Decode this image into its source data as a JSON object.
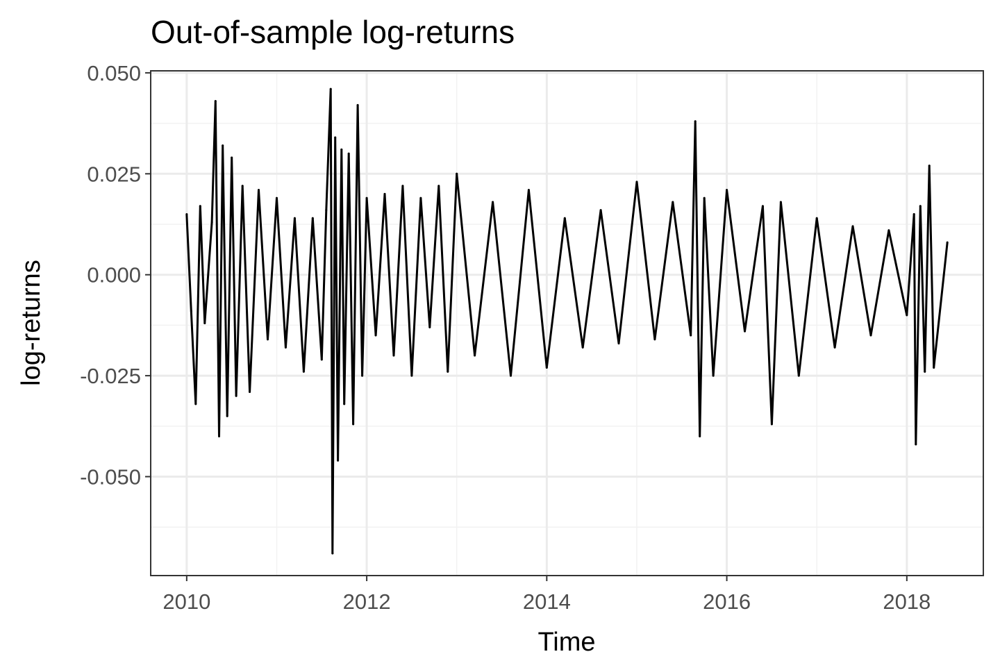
{
  "chart_data": {
    "type": "line",
    "title": "Out-of-sample log-returns",
    "xlabel": "Time",
    "ylabel": "log-returns",
    "xlim": [
      2009.6,
      2018.85
    ],
    "ylim": [
      -0.0745,
      0.0505
    ],
    "x_ticks": [
      2010,
      2012,
      2014,
      2016,
      2018
    ],
    "x_tick_labels": [
      "2010",
      "2012",
      "2014",
      "2016",
      "2018"
    ],
    "y_ticks": [
      -0.05,
      -0.025,
      0.0,
      0.025,
      0.05
    ],
    "y_tick_labels": [
      "-0.050",
      "-0.025",
      "0.000",
      "0.025",
      "0.050"
    ],
    "grid": true,
    "legend": "none",
    "series": [
      {
        "color": "#000000",
        "x": [
          2010.0,
          2010.05,
          2010.1,
          2010.15,
          2010.2,
          2010.28,
          2010.32,
          2010.36,
          2010.4,
          2010.45,
          2010.5,
          2010.55,
          2010.62,
          2010.7,
          2010.8,
          2010.9,
          2011.0,
          2011.1,
          2011.2,
          2011.3,
          2011.4,
          2011.5,
          2011.55,
          2011.6,
          2011.62,
          2011.65,
          2011.68,
          2011.72,
          2011.75,
          2011.8,
          2011.85,
          2011.9,
          2011.95,
          2012.0,
          2012.1,
          2012.2,
          2012.3,
          2012.4,
          2012.5,
          2012.6,
          2012.7,
          2012.8,
          2012.9,
          2013.0,
          2013.2,
          2013.4,
          2013.6,
          2013.8,
          2014.0,
          2014.2,
          2014.4,
          2014.6,
          2014.8,
          2015.0,
          2015.2,
          2015.4,
          2015.6,
          2015.65,
          2015.7,
          2015.75,
          2015.85,
          2016.0,
          2016.2,
          2016.4,
          2016.5,
          2016.6,
          2016.8,
          2017.0,
          2017.2,
          2017.4,
          2017.6,
          2017.8,
          2018.0,
          2018.08,
          2018.1,
          2018.15,
          2018.2,
          2018.25,
          2018.3,
          2018.45
        ],
        "values": [
          0.015,
          -0.009,
          -0.032,
          0.017,
          -0.012,
          0.013,
          0.043,
          -0.04,
          0.032,
          -0.035,
          0.029,
          -0.03,
          0.022,
          -0.029,
          0.021,
          -0.016,
          0.019,
          -0.018,
          0.014,
          -0.024,
          0.014,
          -0.021,
          0.016,
          0.046,
          -0.069,
          0.034,
          -0.046,
          0.031,
          -0.032,
          0.03,
          -0.037,
          0.042,
          -0.025,
          0.019,
          -0.015,
          0.02,
          -0.02,
          0.022,
          -0.025,
          0.019,
          -0.013,
          0.022,
          -0.024,
          0.025,
          -0.02,
          0.018,
          -0.025,
          0.021,
          -0.023,
          0.014,
          -0.018,
          0.016,
          -0.017,
          0.023,
          -0.016,
          0.018,
          -0.015,
          0.038,
          -0.04,
          0.019,
          -0.025,
          0.021,
          -0.014,
          0.017,
          -0.037,
          0.018,
          -0.025,
          0.014,
          -0.018,
          0.012,
          -0.015,
          0.011,
          -0.01,
          0.015,
          -0.042,
          0.017,
          -0.024,
          0.027,
          -0.023,
          0.008
        ]
      }
    ]
  }
}
